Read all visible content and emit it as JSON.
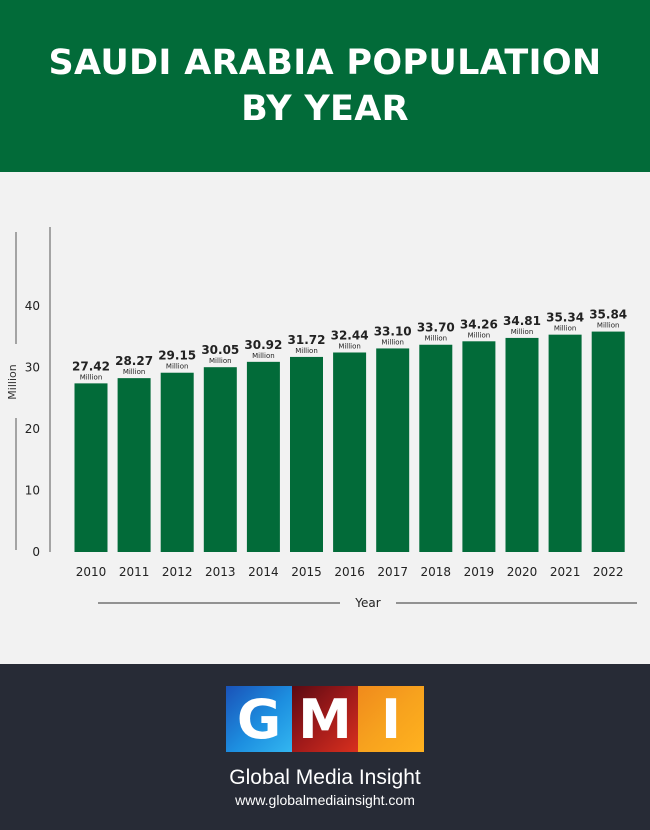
{
  "header": {
    "title_line1": "SAUDI ARABIA POPULATION",
    "title_line2": "BY YEAR"
  },
  "colors": {
    "brand_green": "#026b39",
    "bar_green": "#026b39",
    "footer_bg": "#272b36",
    "chart_bg": "#f2f2f2"
  },
  "chart_data": {
    "type": "bar",
    "title": "SAUDI ARABIA POPULATION BY YEAR",
    "xlabel": "Year",
    "ylabel": "Million",
    "categories": [
      "2010",
      "2011",
      "2012",
      "2013",
      "2014",
      "2015",
      "2016",
      "2017",
      "2018",
      "2019",
      "2020",
      "2021",
      "2022"
    ],
    "values": [
      27.42,
      28.27,
      29.15,
      30.05,
      30.92,
      31.72,
      32.44,
      33.1,
      33.7,
      34.26,
      34.81,
      35.34,
      35.84
    ],
    "value_labels": [
      "27.42",
      "28.27",
      "29.15",
      "30.05",
      "30.92",
      "31.72",
      "32.44",
      "33.10",
      "33.70",
      "34.26",
      "34.81",
      "35.34",
      "35.84"
    ],
    "unit_label": "Million",
    "yticks": [
      0,
      10,
      20,
      30,
      40
    ],
    "ytick_labels": [
      "0",
      "10",
      "20",
      "30",
      "40"
    ],
    "ylim": [
      0,
      52
    ],
    "grid": false
  },
  "footer": {
    "logo_letters": [
      "G",
      "M",
      "I"
    ],
    "company": "Global Media Insight",
    "website": "www.globalmediainsight.com"
  }
}
